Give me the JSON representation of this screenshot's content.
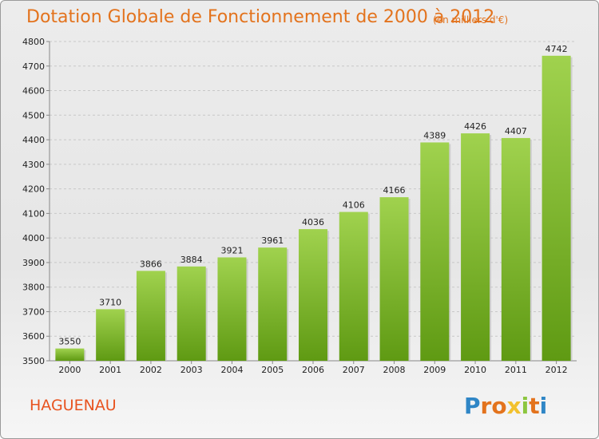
{
  "header": {
    "title": "Dotation Globale de Fonctionnement de 2000 à 2012",
    "unit_note": "(en milliers d'€)"
  },
  "footer": {
    "city": "HAGUENAU",
    "logo_letters": [
      "P",
      "r",
      "o",
      "x",
      "i",
      "t",
      "i"
    ],
    "logo_colors": [
      "#2f86c6",
      "#e3731d",
      "#e3731d",
      "#f2c12e",
      "#8cc63f",
      "#e3731d",
      "#2f86c6"
    ]
  },
  "colors": {
    "title": "#e3731d",
    "bar_top": "#a0d24e",
    "bar_bottom": "#5f9a13",
    "axis_text": "#222222"
  },
  "chart_data": {
    "type": "bar",
    "title": "Dotation Globale de Fonctionnement de 2000 à 2012",
    "subtitle": "(en milliers d'€)",
    "xlabel": "",
    "ylabel": "",
    "categories": [
      "2000",
      "2001",
      "2002",
      "2003",
      "2004",
      "2005",
      "2006",
      "2007",
      "2008",
      "2009",
      "2010",
      "2011",
      "2012"
    ],
    "values": [
      3550,
      3710,
      3866,
      3884,
      3921,
      3961,
      4036,
      4106,
      4166,
      4389,
      4426,
      4407,
      4742
    ],
    "ylim": [
      3500,
      4800
    ],
    "yticks": [
      3500,
      3600,
      3700,
      3800,
      3900,
      4000,
      4100,
      4200,
      4300,
      4400,
      4500,
      4600,
      4700,
      4800
    ],
    "grid": true,
    "legend": "none"
  }
}
